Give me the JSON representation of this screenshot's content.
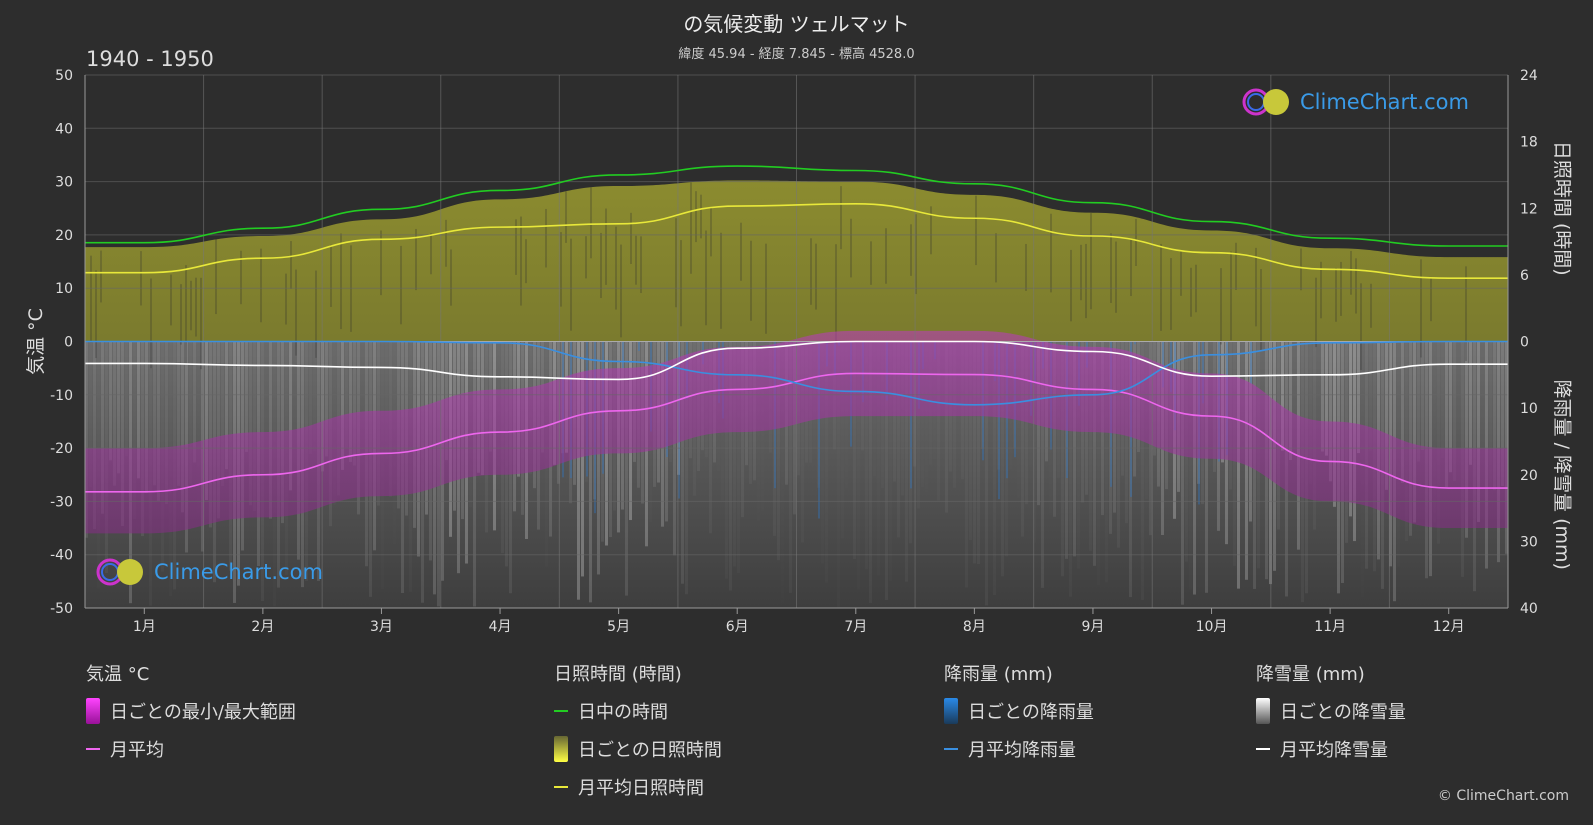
{
  "header": {
    "title": "の気候変動 ツェルマット",
    "subtitle": "緯度 45.94 - 経度 7.845 - 標高 4528.0",
    "period": "1940 - 1950"
  },
  "logo_text": "ClimeChart.com",
  "copyright": "© ClimeChart.com",
  "legend": {
    "temperature": {
      "heading": "気温 °C",
      "range": "日ごとの最小/最大範囲",
      "mean": "月平均"
    },
    "sunshine": {
      "heading": "日照時間 (時間)",
      "daylight": "日中の時間",
      "daily": "日ごとの日照時間",
      "mean": "月平均日照時間"
    },
    "rain": {
      "heading": "降雨量 (mm)",
      "daily": "日ごとの降雨量",
      "mean": "月平均降雨量"
    },
    "snow": {
      "heading": "降雪量 (mm)",
      "daily": "日ごとの降雪量",
      "mean": "月平均降雪量"
    }
  },
  "chart_data": {
    "type": "line",
    "categories": [
      "1月",
      "2月",
      "3月",
      "4月",
      "5月",
      "6月",
      "7月",
      "8月",
      "9月",
      "10月",
      "11月",
      "12月"
    ],
    "axes": {
      "left": {
        "label": "気温 °C",
        "ticks": [
          50,
          40,
          30,
          20,
          10,
          0,
          -10,
          -20,
          -30,
          -40,
          -50
        ],
        "range": [
          -50,
          50
        ]
      },
      "right_top": {
        "label": "日照時間 (時間)",
        "ticks": [
          24,
          18,
          12,
          6,
          0
        ],
        "range": [
          0,
          24
        ]
      },
      "right_bottom": {
        "label": "降雨量 / 降雪量 (mm)",
        "ticks": [
          0,
          10,
          20,
          30,
          40
        ],
        "range": [
          0,
          40
        ]
      }
    },
    "series": [
      {
        "name": "日中の時間",
        "axis": "right_top",
        "color": "#22cc22",
        "values": [
          8.9,
          10.2,
          11.9,
          13.6,
          15.0,
          15.8,
          15.4,
          14.2,
          12.5,
          10.8,
          9.3,
          8.6
        ]
      },
      {
        "name": "月平均日照時間",
        "axis": "right_top",
        "color": "#e8e83a",
        "values": [
          6.2,
          7.5,
          9.2,
          10.3,
          10.6,
          12.2,
          12.4,
          11.1,
          9.5,
          8.0,
          6.5,
          5.7
        ]
      },
      {
        "name": "月平均",
        "axis": "left",
        "color": "#ee66ee",
        "values": [
          -28.2,
          -25.0,
          -21.0,
          -17.0,
          -13.0,
          -9.0,
          -6.0,
          -6.2,
          -9.0,
          -14.0,
          -22.5,
          -27.5
        ]
      },
      {
        "name": "月平均降雨量",
        "axis": "right_bottom",
        "color": "#3a8fe0",
        "values": [
          0.0,
          0.0,
          0.0,
          0.2,
          3.0,
          5.0,
          7.5,
          9.5,
          8.0,
          2.0,
          0.2,
          0.0
        ]
      },
      {
        "name": "月平均降雪量",
        "axis": "right_bottom",
        "color": "#ffffff",
        "values": [
          3.3,
          3.6,
          3.9,
          5.3,
          5.7,
          1.0,
          0.0,
          0.0,
          1.5,
          5.2,
          5.0,
          3.4
        ]
      }
    ],
    "temperature_range": {
      "max": [
        -20,
        -17,
        -13,
        -9,
        -5,
        -1,
        2,
        2,
        -1,
        -6,
        -15,
        -20
      ],
      "min": [
        -36,
        -33,
        -29,
        -25,
        -21,
        -17,
        -14,
        -14,
        -17,
        -22,
        -30,
        -35
      ]
    },
    "daily_sunshine_envelope": [
      8.5,
      9.5,
      11.0,
      12.8,
      14.0,
      14.5,
      14.4,
      13.2,
      11.6,
      10.0,
      8.4,
      7.6
    ]
  },
  "colors": {
    "background": "#2d2d2d",
    "grid": "#555555",
    "daylight": "#22cc22",
    "sunshine": "#e8e83a",
    "temp_range": "#dd22dd",
    "temp_mean": "#ee66ee",
    "rain": "#3a8fe0",
    "snow": "#ffffff"
  }
}
